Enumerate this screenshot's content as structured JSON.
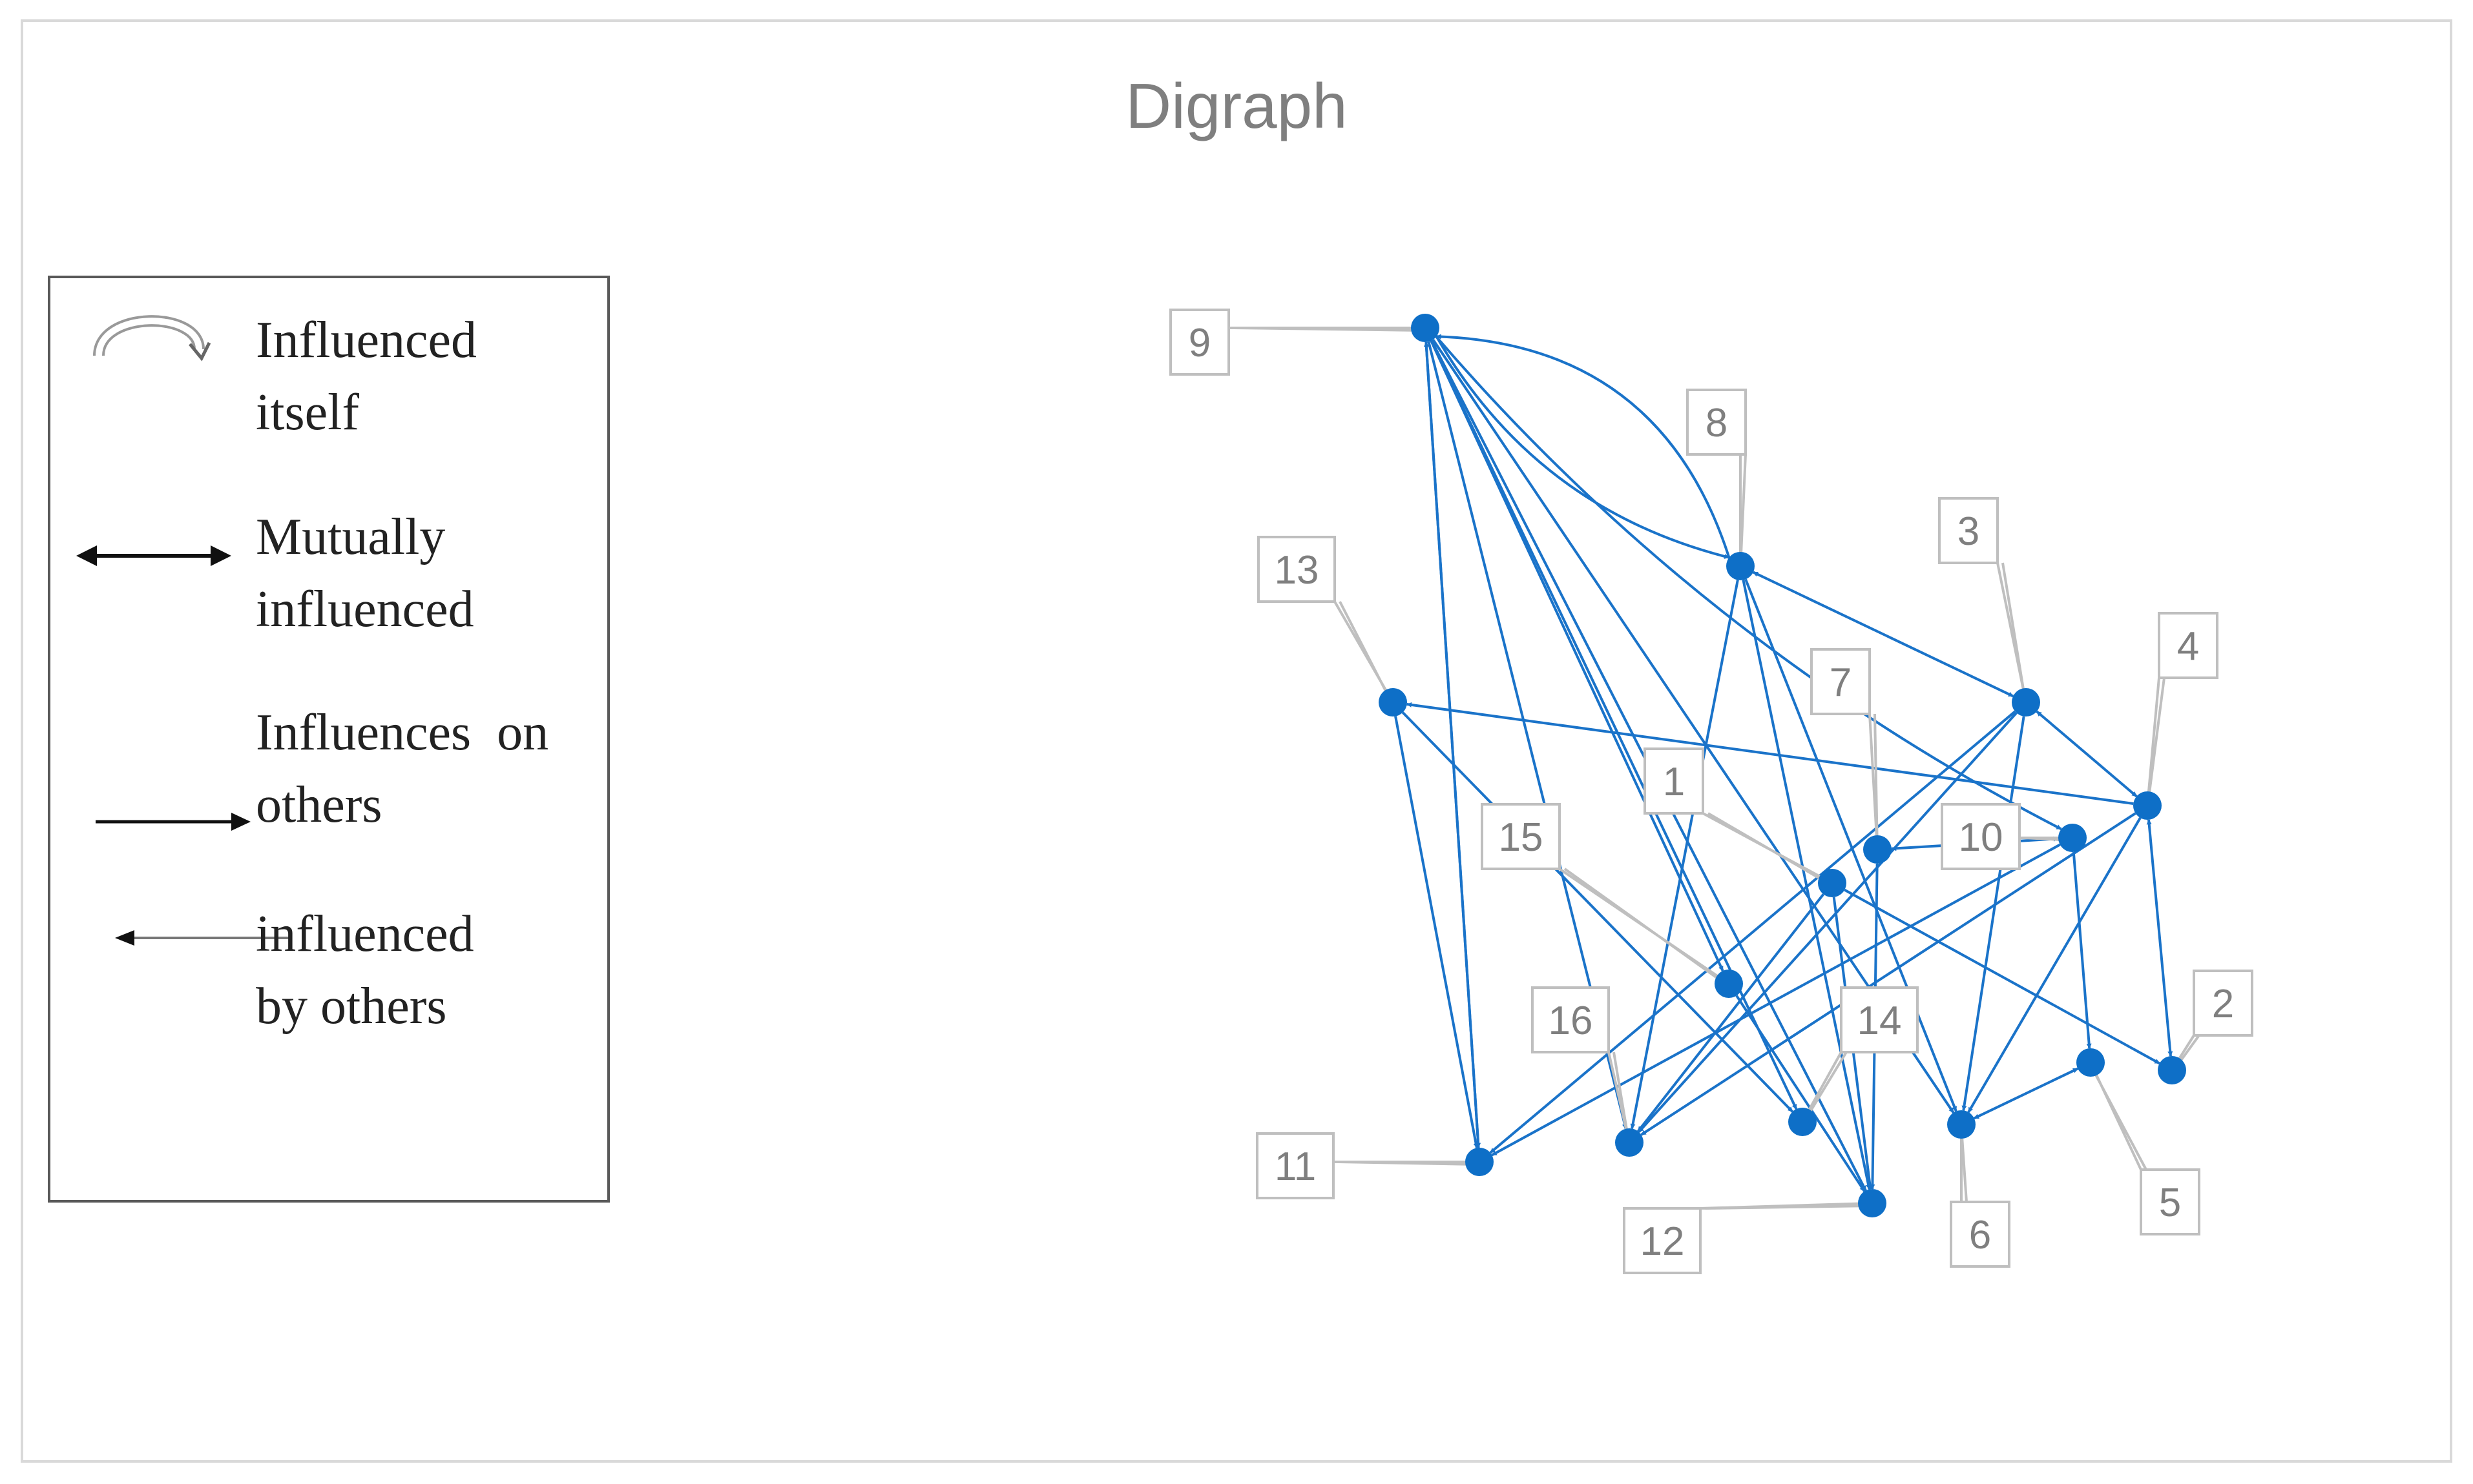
{
  "title": "Digraph",
  "legend": {
    "items": [
      {
        "icon": "self-loop-icon",
        "label": "Influenced\nitself"
      },
      {
        "icon": "double-arrow-icon",
        "label": "Mutually\ninfluenced"
      },
      {
        "icon": "right-arrow-icon",
        "label": "Influences  on\nothers"
      },
      {
        "icon": "left-arrow-icon",
        "label": "influenced\nby others"
      }
    ]
  },
  "colors": {
    "edge": "#1a73c9",
    "node": "#0e6fc7",
    "label_border": "#bfbfbf",
    "label_text": "#7f7f7f",
    "title": "#7f7f7f"
  },
  "nodes": [
    {
      "id": "1",
      "label": "1"
    },
    {
      "id": "2",
      "label": "2"
    },
    {
      "id": "3",
      "label": "3"
    },
    {
      "id": "4",
      "label": "4"
    },
    {
      "id": "5",
      "label": "5"
    },
    {
      "id": "6",
      "label": "6"
    },
    {
      "id": "7",
      "label": "7"
    },
    {
      "id": "8",
      "label": "8"
    },
    {
      "id": "9",
      "label": "9"
    },
    {
      "id": "10",
      "label": "10"
    },
    {
      "id": "11",
      "label": "11"
    },
    {
      "id": "12",
      "label": "12"
    },
    {
      "id": "13",
      "label": "13"
    },
    {
      "id": "14",
      "label": "14"
    },
    {
      "id": "15",
      "label": "15"
    },
    {
      "id": "16",
      "label": "16"
    }
  ],
  "edges": [
    {
      "from": "9",
      "to": "11",
      "type": "directed"
    },
    {
      "from": "9",
      "to": "8",
      "type": "directed"
    },
    {
      "from": "9",
      "to": "16",
      "type": "directed"
    },
    {
      "from": "9",
      "to": "12",
      "type": "directed"
    },
    {
      "from": "9",
      "to": "14",
      "type": "directed"
    },
    {
      "from": "9",
      "to": "6",
      "type": "directed"
    },
    {
      "from": "9",
      "to": "10",
      "type": "directed"
    },
    {
      "from": "9",
      "to": "15",
      "type": "directed"
    },
    {
      "from": "8",
      "to": "9",
      "type": "directed"
    },
    {
      "from": "11",
      "to": "9",
      "type": "directed"
    },
    {
      "from": "8",
      "to": "16",
      "type": "directed"
    },
    {
      "from": "8",
      "to": "12",
      "type": "directed"
    },
    {
      "from": "8",
      "to": "3",
      "type": "mutual"
    },
    {
      "from": "13",
      "to": "11",
      "type": "directed"
    },
    {
      "from": "13",
      "to": "14",
      "type": "directed"
    },
    {
      "from": "4",
      "to": "13",
      "type": "directed"
    },
    {
      "from": "3",
      "to": "4",
      "type": "mutual"
    },
    {
      "from": "3",
      "to": "11",
      "type": "directed"
    },
    {
      "from": "3",
      "to": "6",
      "type": "directed"
    },
    {
      "from": "3",
      "to": "16",
      "type": "directed"
    },
    {
      "from": "4",
      "to": "2",
      "type": "mutual"
    },
    {
      "from": "4",
      "to": "16",
      "type": "directed"
    },
    {
      "from": "4",
      "to": "6",
      "type": "directed"
    },
    {
      "from": "7",
      "to": "10",
      "type": "mutual"
    },
    {
      "from": "7",
      "to": "12",
      "type": "directed"
    },
    {
      "from": "1",
      "to": "12",
      "type": "directed"
    },
    {
      "from": "1",
      "to": "2",
      "type": "directed"
    },
    {
      "from": "1",
      "to": "16",
      "type": "directed"
    },
    {
      "from": "10",
      "to": "5",
      "type": "directed"
    },
    {
      "from": "10",
      "to": "11",
      "type": "directed"
    },
    {
      "from": "5",
      "to": "6",
      "type": "mutual"
    },
    {
      "from": "15",
      "to": "12",
      "type": "directed"
    },
    {
      "from": "8",
      "to": "6",
      "type": "directed"
    }
  ]
}
